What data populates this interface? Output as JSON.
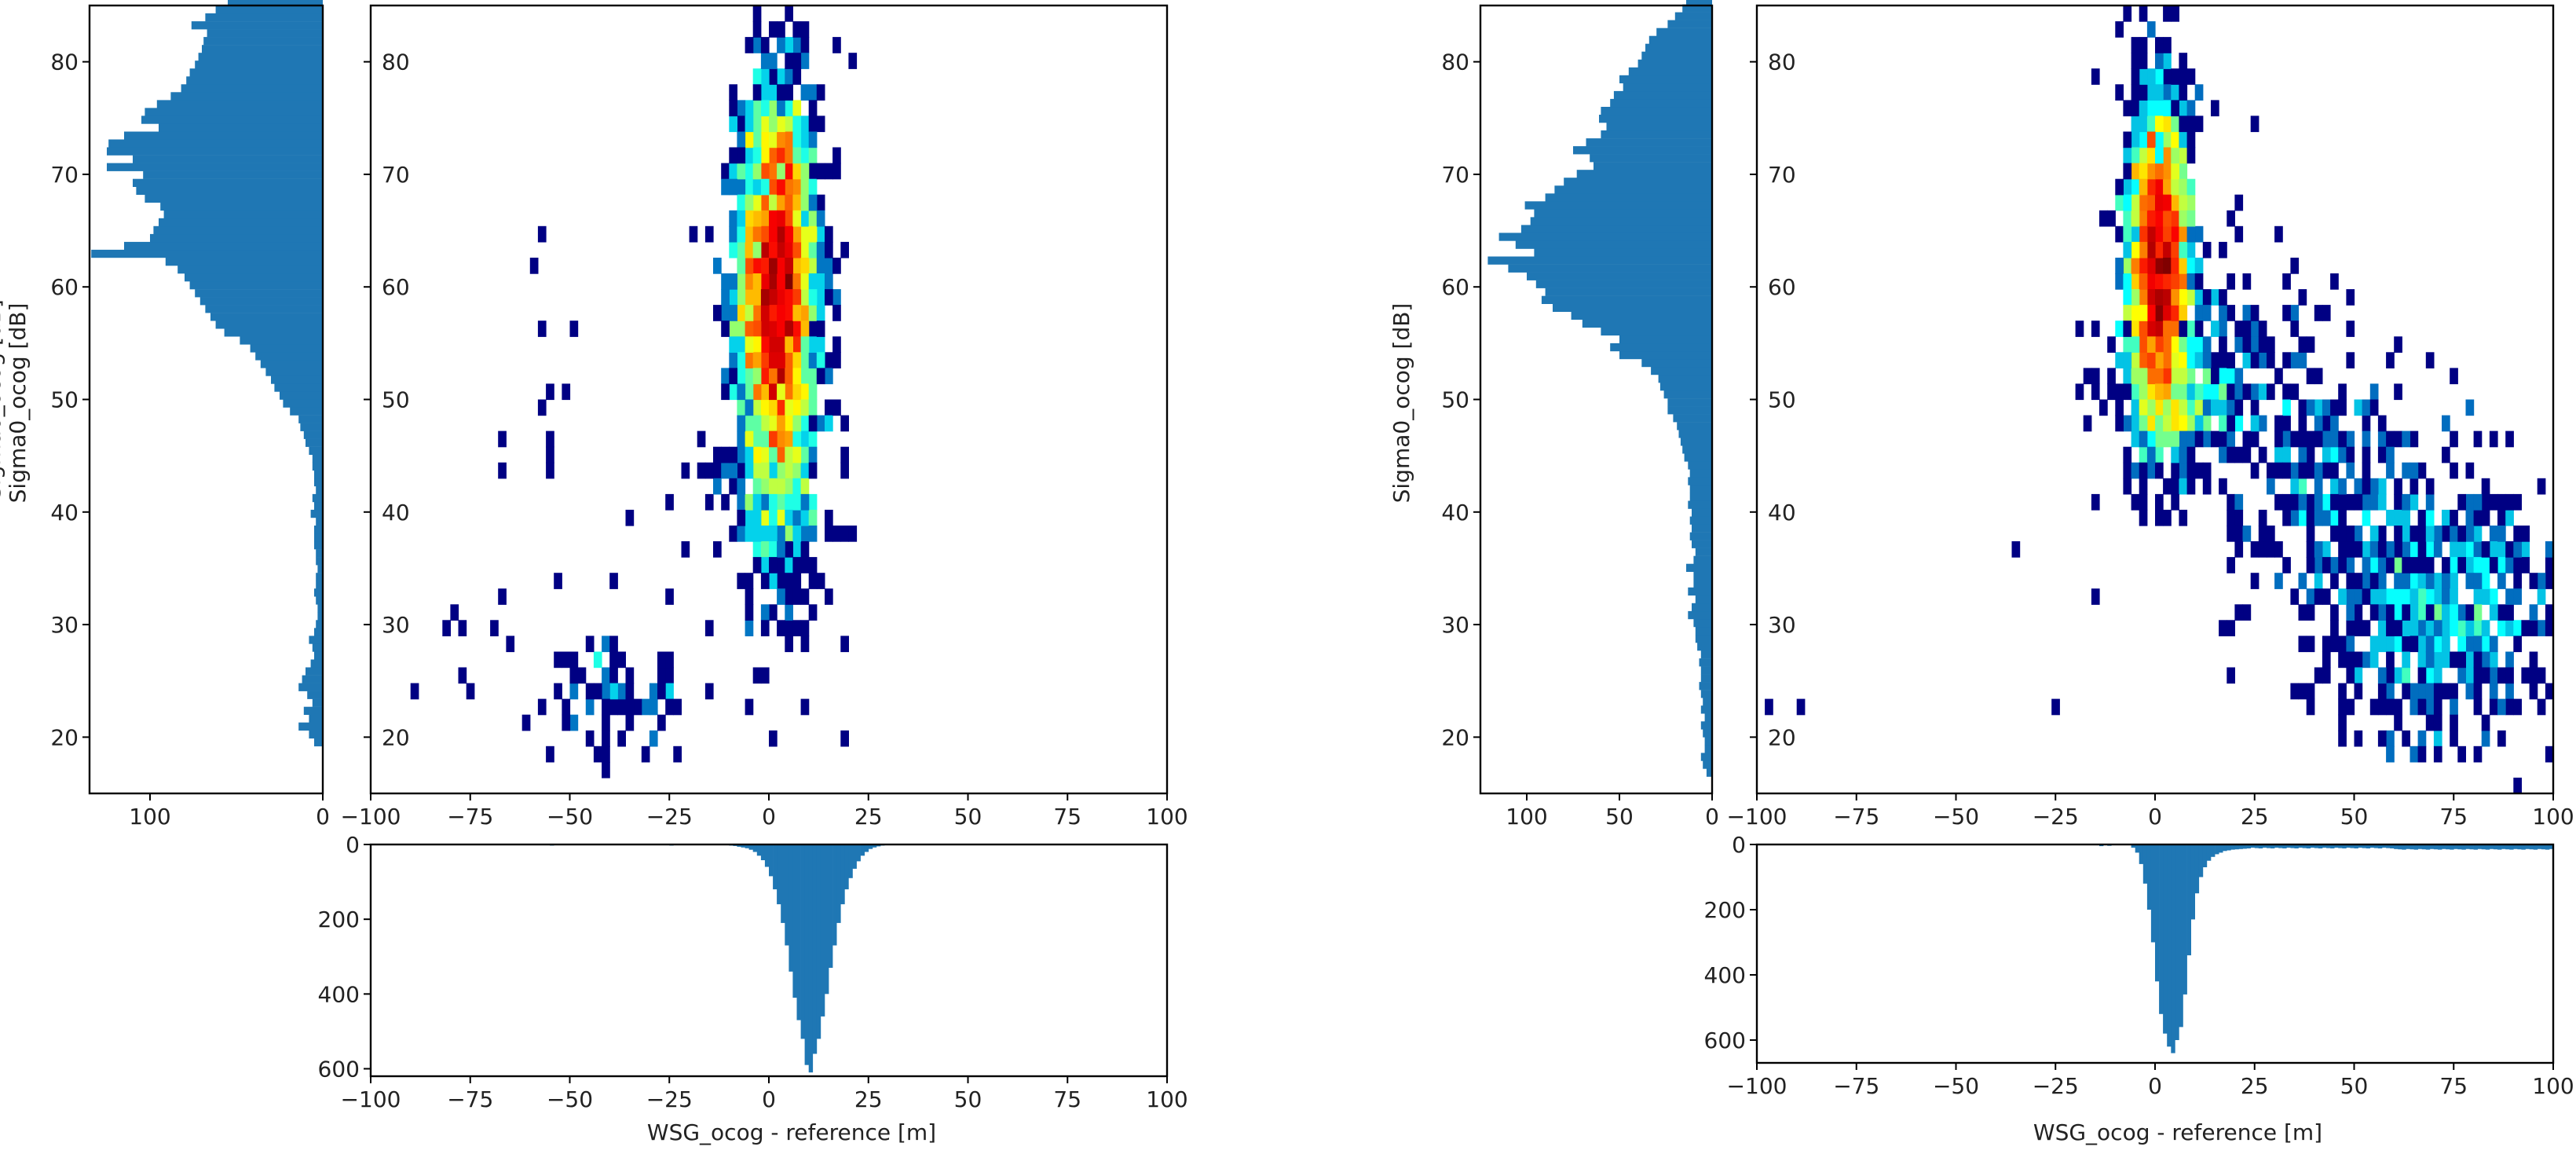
{
  "figure": {
    "colors": {
      "hist": "#1f77b4",
      "frame": "#000000",
      "text": "#222222"
    },
    "colormap": "jet"
  },
  "chart_data": [
    {
      "type": "heatmap",
      "xlabel": "",
      "ylabel": "",
      "xlim": [
        -100,
        100
      ],
      "ylim": [
        15,
        85
      ],
      "xticks": [
        "−100",
        "−75",
        "−50",
        "−25",
        "0",
        "25",
        "50",
        "75",
        "100"
      ],
      "yticks": [
        "20",
        "30",
        "40",
        "50",
        "60",
        "70",
        "80"
      ],
      "bins": {
        "x": 2,
        "y": 1.4
      },
      "clusters": [
        {
          "cx": 2,
          "cy": 60,
          "sx": 5,
          "sy": 9,
          "n": 2600
        },
        {
          "cx": 3,
          "cy": 42,
          "sx": 7,
          "sy": 6,
          "n": 260
        },
        {
          "cx": -38,
          "cy": 23.5,
          "sx": 9,
          "sy": 2.5,
          "n": 70
        }
      ],
      "sparse": [
        [
          -58,
          64
        ],
        [
          -60,
          62
        ],
        [
          -57,
          56.5
        ],
        [
          -50,
          56.5
        ],
        [
          -56,
          51
        ],
        [
          -52,
          51
        ],
        [
          -57,
          49
        ],
        [
          -67,
          47
        ],
        [
          -56,
          47
        ],
        [
          -56,
          45
        ],
        [
          -67,
          43.5
        ],
        [
          -56,
          43.5
        ],
        [
          -82,
          30
        ],
        [
          -80,
          31.5
        ],
        [
          -78,
          29.5
        ],
        [
          -70,
          29.5
        ],
        [
          -67,
          33
        ],
        [
          -53,
          34
        ],
        [
          -40,
          34.5
        ],
        [
          -35,
          39.5
        ],
        [
          -25,
          33
        ],
        [
          -22,
          37
        ],
        [
          -18,
          43.5
        ],
        [
          -22,
          43.5
        ],
        [
          -15,
          29.5
        ],
        [
          -5,
          29.5
        ],
        [
          -2,
          30.5
        ],
        [
          0,
          20
        ],
        [
          8,
          28
        ],
        [
          18,
          28.5
        ],
        [
          19,
          19.5
        ],
        [
          -90,
          23.5
        ],
        [
          -78,
          25
        ],
        [
          -75,
          23.5
        ],
        [
          -30,
          19.5
        ],
        [
          -15,
          24
        ],
        [
          -5,
          41
        ],
        [
          15,
          39
        ],
        [
          -15,
          43
        ],
        [
          -25,
          40.5
        ],
        [
          -8,
          76
        ],
        [
          -5,
          72
        ],
        [
          16,
          82
        ],
        [
          -58,
          22
        ],
        [
          -54,
          27.5
        ],
        [
          -48,
          26
        ],
        [
          -42,
          22
        ],
        [
          -28,
          27
        ],
        [
          -46,
          24.5
        ]
      ]
    },
    {
      "type": "bar",
      "orientation": "horizontal",
      "xticks": [
        "100",
        "0"
      ],
      "yticks": [
        "20",
        "30",
        "40",
        "50",
        "60",
        "70",
        "80"
      ],
      "xlim": [
        135,
        0
      ],
      "ylim": [
        15,
        85
      ],
      "bin_start": 19.2,
      "bin_width": 0.7,
      "values": [
        5,
        8,
        14,
        8,
        11,
        6,
        9,
        14,
        12,
        10,
        7,
        5,
        6,
        8,
        5,
        4,
        3,
        3,
        4,
        5,
        4,
        4,
        3,
        4,
        4,
        5,
        5,
        5,
        4,
        7,
        5,
        6,
        4,
        5,
        5,
        6,
        6,
        8,
        10,
        11,
        13,
        14,
        19,
        23,
        25,
        28,
        30,
        33,
        36,
        39,
        42,
        48,
        57,
        62,
        65,
        68,
        71,
        74,
        77,
        80,
        84,
        91,
        134,
        115,
        100,
        98,
        95,
        92,
        94,
        103,
        108,
        110,
        104,
        125,
        110,
        125,
        124,
        115,
        95,
        105,
        103,
        96,
        88,
        82,
        79,
        77,
        74,
        72,
        70,
        69,
        67,
        76,
        68,
        62,
        55,
        58,
        46,
        50,
        39,
        42,
        33,
        28,
        25,
        22,
        18,
        15,
        12,
        10,
        7,
        4
      ]
    },
    {
      "type": "bar",
      "orientation": "vertical-down",
      "xlabel": "WSG_ocog - reference [m]",
      "xticks": [
        "−100",
        "−75",
        "−50",
        "−25",
        "0",
        "25",
        "50",
        "75",
        "100"
      ],
      "yticks": [
        "0",
        "200",
        "400",
        "600"
      ],
      "xlim": [
        -100,
        100
      ],
      "ylim": [
        0,
        620
      ],
      "bin_start": -10,
      "bin_width": 1,
      "values": [
        3,
        4,
        6,
        8,
        10,
        14,
        20,
        30,
        42,
        60,
        85,
        120,
        160,
        210,
        270,
        340,
        410,
        470,
        520,
        590,
        610,
        560,
        520,
        460,
        400,
        330,
        270,
        210,
        160,
        120,
        90,
        65,
        45,
        30,
        20,
        12,
        8,
        5,
        3,
        2
      ],
      "extra": [
        [
          -55,
          3
        ],
        [
          -40,
          2
        ],
        [
          -25,
          3
        ],
        [
          -17,
          2
        ]
      ]
    },
    {
      "type": "heatmap",
      "xlabel": "",
      "ylabel": "",
      "xlim": [
        -100,
        100
      ],
      "ylim": [
        15,
        85
      ],
      "xticks": [
        "−100",
        "−75",
        "−50",
        "−25",
        "0",
        "25",
        "50",
        "75",
        "100"
      ],
      "yticks": [
        "20",
        "30",
        "40",
        "50",
        "60",
        "70",
        "80"
      ],
      "bins": {
        "x": 2,
        "y": 1.4
      },
      "clusters": [
        {
          "cx": 1,
          "cy": 62,
          "sx": 4,
          "sy": 7.5,
          "n": 2200
        },
        {
          "cx": 8,
          "cy": 50,
          "sx": 8,
          "sy": 3,
          "n": 200
        },
        {
          "cx": 72,
          "cy": 32,
          "sx": 16,
          "sy": 6,
          "n": 650
        },
        {
          "cx": 40,
          "cy": 44,
          "sx": 15,
          "sy": 7,
          "n": 280
        },
        {
          "cx": 15,
          "cy": 55,
          "sx": 10,
          "sy": 5,
          "n": 90
        }
      ],
      "sparse": [
        [
          -98,
          22.5
        ],
        [
          -90,
          22.5
        ],
        [
          -35,
          36.5
        ],
        [
          -25,
          23
        ],
        [
          -16,
          33
        ],
        [
          -15,
          41
        ],
        [
          -20,
          51
        ],
        [
          -17,
          52.5
        ],
        [
          -15,
          79
        ],
        [
          -10,
          77
        ],
        [
          25,
          74
        ],
        [
          28,
          42
        ],
        [
          -8,
          42
        ],
        [
          30,
          64
        ],
        [
          32,
          57
        ],
        [
          20,
          31
        ],
        [
          18,
          26
        ],
        [
          38,
          23
        ],
        [
          -15,
          50
        ],
        [
          -10,
          54
        ]
      ]
    },
    {
      "type": "bar",
      "orientation": "horizontal",
      "ylabel": "Sigma0_ocog [dB]",
      "xticks": [
        "100",
        "50",
        "0"
      ],
      "yticks": [
        "20",
        "30",
        "40",
        "50",
        "60",
        "70",
        "80"
      ],
      "xlim": [
        125,
        0
      ],
      "ylim": [
        15,
        85
      ],
      "bin_start": 16.5,
      "bin_width": 0.7,
      "values": [
        3,
        5,
        6,
        4,
        4,
        5,
        6,
        4,
        6,
        5,
        6,
        7,
        6,
        6,
        7,
        6,
        8,
        9,
        9,
        10,
        13,
        11,
        9,
        13,
        10,
        10,
        14,
        10,
        9,
        11,
        12,
        11,
        12,
        11,
        13,
        12,
        12,
        13,
        12,
        13,
        15,
        16,
        17,
        18,
        19,
        21,
        24,
        24,
        26,
        28,
        29,
        33,
        38,
        50,
        55,
        50,
        60,
        70,
        76,
        86,
        92,
        90,
        95,
        100,
        110,
        121,
        96,
        106,
        115,
        103,
        98,
        96,
        101,
        90,
        85,
        80,
        73,
        64,
        66,
        75,
        68,
        60,
        57,
        61,
        60,
        55,
        53,
        48,
        50,
        45,
        40,
        38,
        36,
        34,
        30,
        24,
        20,
        16,
        14,
        11,
        9,
        7,
        5,
        3
      ]
    },
    {
      "type": "bar",
      "orientation": "vertical-down",
      "xlabel": "WSG_ocog - reference [m]",
      "xticks": [
        "−100",
        "−75",
        "−50",
        "−25",
        "0",
        "25",
        "50",
        "75",
        "100"
      ],
      "yticks": [
        "0",
        "200",
        "400",
        "600"
      ],
      "xlim": [
        -100,
        100
      ],
      "ylim": [
        0,
        670
      ],
      "bin_start": -6,
      "bin_width": 1,
      "values": [
        10,
        25,
        60,
        120,
        200,
        300,
        420,
        520,
        580,
        620,
        640,
        600,
        560,
        460,
        340,
        230,
        150,
        100,
        70,
        50,
        38,
        30,
        25,
        20,
        18,
        16,
        15,
        14,
        13,
        12
      ],
      "tail": [
        [
          24,
          60,
          10
        ],
        [
          60,
          100,
          14
        ]
      ],
      "extra": [
        [
          -14,
          5
        ],
        [
          -12,
          4
        ]
      ]
    }
  ]
}
